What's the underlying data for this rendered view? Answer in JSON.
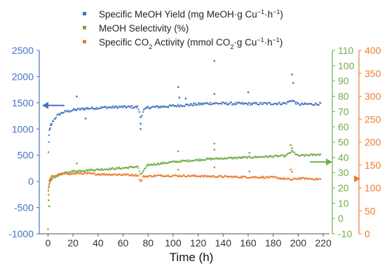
{
  "chart_data": {
    "type": "scatter",
    "xlabel": "Time (h)",
    "x_ticks": [
      0,
      20,
      40,
      60,
      80,
      100,
      120,
      140,
      160,
      180,
      200,
      220
    ],
    "xlim": [
      -7,
      225
    ],
    "axes": {
      "left": {
        "ylim": [
          -1000,
          2500
        ],
        "ticks": [
          -1000,
          -500,
          0,
          500,
          1000,
          1500,
          2000,
          2500
        ],
        "color": "#4472c4"
      },
      "right1": {
        "ylim": [
          -10,
          110
        ],
        "ticks": [
          -10,
          0,
          10,
          20,
          30,
          40,
          50,
          60,
          70,
          80,
          90,
          100,
          110
        ],
        "color": "#70ad47"
      },
      "right2": {
        "ylim": [
          0,
          400
        ],
        "ticks": [
          0,
          50,
          100,
          150,
          200,
          250,
          300,
          350,
          400
        ],
        "color": "#ed7d31"
      }
    },
    "legend": {
      "placement": "top-center",
      "entries": [
        {
          "prefix": "Specific MeOH Yield (mg MeOH·g Cu",
          "sup1": "−1",
          "mid": "·h",
          "sup2": "−1",
          "suffix": ")"
        },
        {
          "prefix": "MeOH Selectivity (%)"
        },
        {
          "prefix": "Specific CO",
          "sub": "2",
          "mid": " Activity (mmol CO",
          "sub2": "2",
          "tail": "·g Cu",
          "sup1": "−1",
          "mid2": "·h",
          "sup2": "−1",
          "suffix": ")"
        }
      ]
    },
    "series": [
      {
        "name": "Specific MeOH Yield (mg MeOH·g Cu−1·h−1)",
        "axis": "left",
        "color": "#4472c4",
        "profile": [
          [
            0.3,
            550
          ],
          [
            0.6,
            800
          ],
          [
            1,
            950
          ],
          [
            2,
            1050
          ],
          [
            4,
            1150
          ],
          [
            7,
            1250
          ],
          [
            12,
            1320
          ],
          [
            20,
            1360
          ],
          [
            30,
            1390
          ],
          [
            45,
            1410
          ],
          [
            60,
            1420
          ],
          [
            72,
            1420
          ],
          [
            74,
            1200
          ],
          [
            76,
            1350
          ],
          [
            80,
            1410
          ],
          [
            100,
            1440
          ],
          [
            130,
            1490
          ],
          [
            160,
            1480
          ],
          [
            190,
            1490
          ],
          [
            195,
            1550
          ],
          [
            200,
            1470
          ],
          [
            218,
            1480
          ]
        ],
        "outliers": [
          [
            133,
            2300
          ],
          [
            195,
            2040
          ],
          [
            104,
            1800
          ],
          [
            160,
            1700
          ],
          [
            23,
            1620
          ],
          [
            133,
            1670
          ],
          [
            196,
            1880
          ],
          [
            74,
            1000
          ],
          [
            74,
            1100
          ],
          [
            105,
            1600
          ],
          [
            30,
            1200
          ],
          [
            110,
            1580
          ]
        ]
      },
      {
        "name": "MeOH Selectivity (%)",
        "axis": "right1",
        "color": "#70ad47",
        "profile": [
          [
            0.3,
            18
          ],
          [
            1,
            22
          ],
          [
            2,
            25
          ],
          [
            5,
            27
          ],
          [
            10,
            29
          ],
          [
            20,
            31
          ],
          [
            40,
            32
          ],
          [
            60,
            33
          ],
          [
            72,
            34
          ],
          [
            74,
            28
          ],
          [
            76,
            31
          ],
          [
            80,
            35
          ],
          [
            100,
            37
          ],
          [
            130,
            39
          ],
          [
            160,
            40
          ],
          [
            190,
            41
          ],
          [
            195,
            44
          ],
          [
            200,
            41
          ],
          [
            218,
            42
          ]
        ],
        "outliers": [
          [
            0.5,
            12
          ],
          [
            1,
            8
          ],
          [
            104,
            44
          ],
          [
            133,
            49
          ],
          [
            133,
            45
          ],
          [
            194,
            48
          ],
          [
            195,
            46
          ],
          [
            161,
            43
          ],
          [
            23,
            36
          ]
        ]
      },
      {
        "name": "Specific CO2 Activity (mmol CO2·g Cu−1·h−1)",
        "axis": "right2",
        "color": "#ed7d31",
        "profile": [
          [
            0.3,
            95
          ],
          [
            1,
            115
          ],
          [
            3,
            125
          ],
          [
            10,
            130
          ],
          [
            25,
            132
          ],
          [
            40,
            130
          ],
          [
            60,
            129
          ],
          [
            72,
            128
          ],
          [
            74,
            112
          ],
          [
            76,
            125
          ],
          [
            90,
            127
          ],
          [
            120,
            126
          ],
          [
            150,
            124
          ],
          [
            180,
            123
          ],
          [
            195,
            118
          ],
          [
            200,
            121
          ],
          [
            218,
            119
          ]
        ],
        "outliers": [
          [
            0,
            10
          ],
          [
            0.5,
            85
          ],
          [
            104,
            140
          ],
          [
            133,
            145
          ],
          [
            194,
            140
          ],
          [
            195,
            135
          ],
          [
            161,
            136
          ]
        ]
      }
    ]
  }
}
